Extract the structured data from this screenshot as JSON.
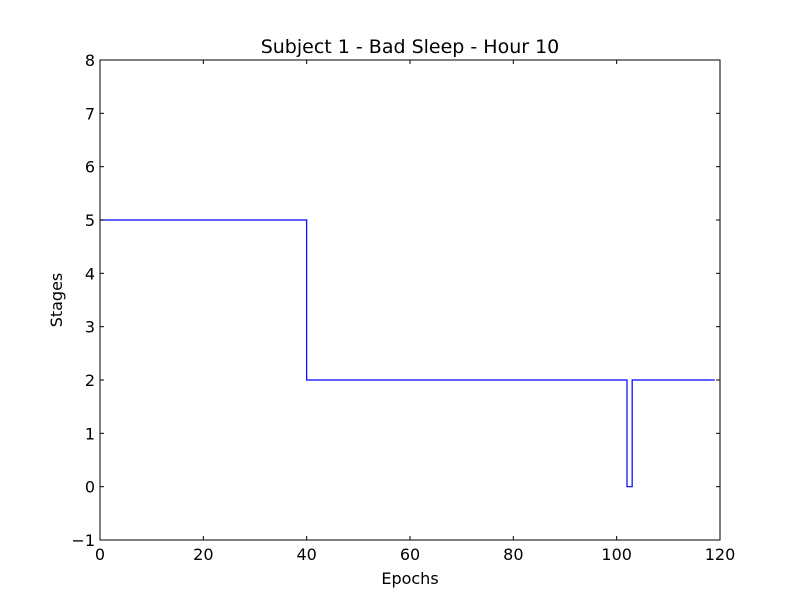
{
  "chart_data": {
    "type": "line",
    "drawstyle": "steps-post",
    "title": "Subject 1 - Bad Sleep - Hour 10",
    "xlabel": "Epochs",
    "ylabel": "Stages",
    "xlim": [
      0,
      120
    ],
    "ylim": [
      -1,
      8
    ],
    "xticks": [
      0,
      20,
      40,
      60,
      80,
      100,
      120
    ],
    "xtick_labels": [
      "0",
      "20",
      "40",
      "60",
      "80",
      "100",
      "120"
    ],
    "yticks": [
      -1,
      0,
      1,
      2,
      3,
      4,
      5,
      6,
      7,
      8
    ],
    "ytick_labels": [
      "−1",
      "0",
      "1",
      "2",
      "3",
      "4",
      "5",
      "6",
      "7",
      "8"
    ],
    "grid": false,
    "legend": "none",
    "series": [
      {
        "color": "#0000ff",
        "x": [
          0,
          40,
          102,
          103,
          119
        ],
        "y": [
          5,
          2,
          0,
          2,
          2
        ]
      }
    ]
  }
}
